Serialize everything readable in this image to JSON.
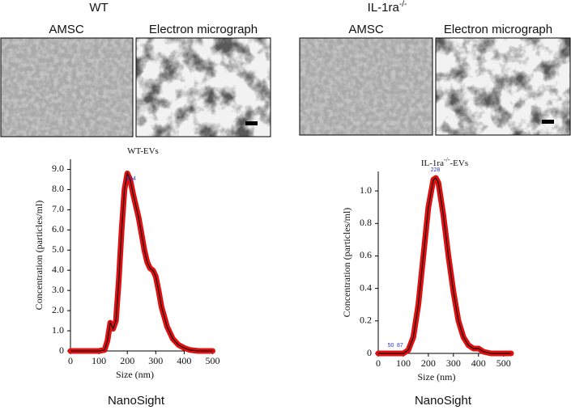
{
  "panels": [
    {
      "title": "WT",
      "image_labels": [
        "AMSC",
        "Electron micrograph"
      ],
      "footer": "NanoSight"
    },
    {
      "title": "IL-1ra",
      "title_sup": "-/-",
      "image_labels": [
        "AMSC",
        "Electron micrograph"
      ],
      "footer": "NanoSight"
    }
  ],
  "chart_data": [
    {
      "type": "line",
      "title": "WT-EVs",
      "xlabel": "Size (nm)",
      "ylabel": "Concentration (particles/ml)",
      "x": [
        0,
        50,
        100,
        120,
        130,
        140,
        150,
        160,
        170,
        180,
        190,
        200,
        210,
        220,
        230,
        240,
        250,
        260,
        270,
        280,
        290,
        300,
        310,
        320,
        340,
        360,
        380,
        400,
        420,
        450,
        500
      ],
      "values": [
        0,
        0,
        0,
        0.05,
        0.5,
        1.4,
        1.1,
        1.5,
        3.5,
        6,
        8,
        8.8,
        8.5,
        7.8,
        7.2,
        6.6,
        5.8,
        5,
        4.4,
        4.1,
        4,
        3.7,
        3,
        2.2,
        1.2,
        0.6,
        0.3,
        0.15,
        0.05,
        0,
        0
      ],
      "color": "#111111",
      "band_color": "#e01010",
      "xlim": [
        0,
        510
      ],
      "xticks": [
        0,
        100,
        200,
        300,
        400,
        500
      ],
      "ylim": [
        0,
        9.5
      ],
      "yticks": [
        0,
        {
          "value": 1,
          "label": "1.0"
        },
        {
          "value": 2,
          "label": "2.0"
        },
        {
          "value": 3,
          "label": "3.0"
        },
        {
          "value": 4,
          "label": "4.0"
        },
        {
          "value": 5,
          "label": "5.0"
        },
        {
          "value": 6,
          "label": "6.0"
        },
        {
          "value": 7,
          "label": "7.0"
        },
        {
          "value": 8,
          "label": "8.0"
        },
        {
          "value": 9,
          "label": "9.0"
        }
      ],
      "annotations": [
        {
          "label": "214",
          "x": 214,
          "y": 8.3
        }
      ]
    },
    {
      "type": "line",
      "title": "IL-1ra",
      "title_sup": "-/-",
      "title_suffix": "-EVs",
      "xlabel": "Size (nm)",
      "ylabel": "Concentration (particles/ml)",
      "x": [
        0,
        50,
        100,
        120,
        140,
        160,
        180,
        200,
        220,
        230,
        240,
        260,
        280,
        300,
        320,
        340,
        360,
        380,
        400,
        420,
        450,
        500,
        530
      ],
      "values": [
        0,
        0,
        0,
        0.02,
        0.1,
        0.3,
        0.6,
        0.9,
        1.07,
        1.08,
        1.05,
        0.85,
        0.6,
        0.38,
        0.2,
        0.1,
        0.05,
        0.03,
        0.03,
        0.01,
        0,
        0,
        0
      ],
      "color": "#111111",
      "band_color": "#e01010",
      "xlim": [
        0,
        530
      ],
      "xticks": [
        0,
        100,
        200,
        300,
        400,
        500
      ],
      "ylim": [
        0,
        1.12
      ],
      "yticks": [
        0,
        {
          "value": 0.2,
          "label": "0.2"
        },
        {
          "value": 0.4,
          "label": "0.4"
        },
        {
          "value": 0.6,
          "label": "0.6"
        },
        {
          "value": 0.8,
          "label": "0.8"
        },
        {
          "value": 1,
          "label": "1.0"
        }
      ],
      "annotations": [
        {
          "label": "228",
          "x": 228,
          "y": 1.1
        },
        {
          "label": "50",
          "x": 50,
          "y": 0.02
        },
        {
          "label": "87",
          "x": 87,
          "y": 0.02
        }
      ]
    }
  ]
}
